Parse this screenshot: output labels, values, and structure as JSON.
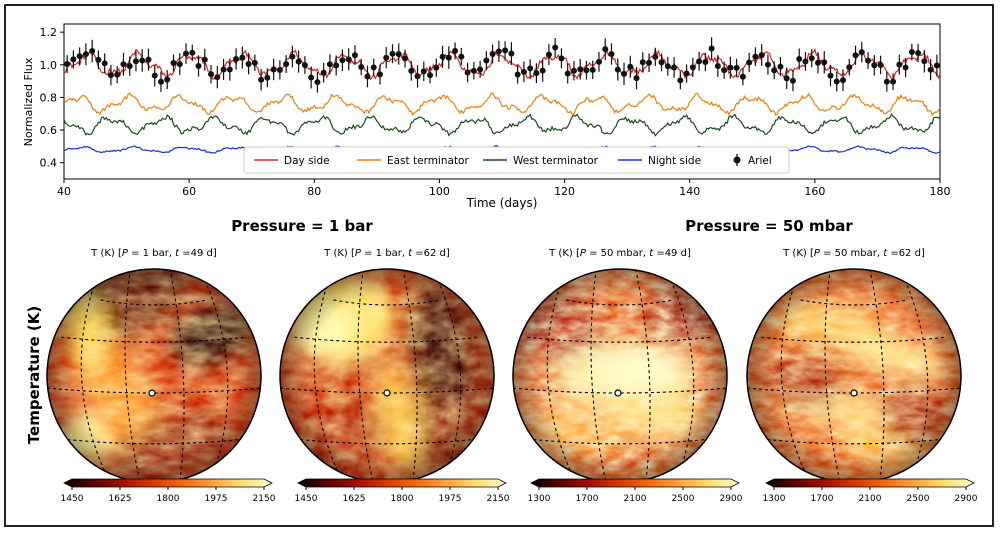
{
  "chart_data": [
    {
      "type": "line",
      "xlabel": "Time (days)",
      "ylabel": "Normalized Flux",
      "xlim": [
        40,
        180
      ],
      "ylim": [
        0.3,
        1.25
      ],
      "x_ticks": [
        "40",
        "60",
        "80",
        "100",
        "120",
        "140",
        "160",
        "180"
      ],
      "y_ticks": [
        "0.4",
        "0.6",
        "0.8",
        "1.0",
        "1.2"
      ],
      "legend_position": "bottom-center",
      "grid": false,
      "series": [
        {
          "name": "Day side",
          "color": "#d62728",
          "mean": 1.0,
          "amplitude": 0.07,
          "period_days": 8.3
        },
        {
          "name": "East terminator",
          "color": "#ee7f0e",
          "mean": 0.76,
          "amplitude": 0.05,
          "period_days": 8.3
        },
        {
          "name": "West terminator",
          "color": "#1f4a1f",
          "mean": 0.63,
          "amplitude": 0.05,
          "period_days": 8.3
        },
        {
          "name": "Night side",
          "color": "#1f2fd6",
          "mean": 0.48,
          "amplitude": 0.018,
          "period_days": 8.3
        },
        {
          "name": "Ariel",
          "color": "#111111",
          "marker": "errorbar",
          "error": 0.05,
          "cadence_days": 1.0
        }
      ]
    },
    {
      "type": "heatmap",
      "panel_group": "Pressure =  1 bar",
      "title_prefix": "T (K) [",
      "title_p": "P",
      "title_mid": " = 1 bar, ",
      "title_t": "t",
      "title_suffix": " =49 d]",
      "colorbar_ticks": [
        "1450",
        "1625",
        "1800",
        "1975",
        "2150"
      ],
      "colorbar_range": [
        1450,
        2150
      ]
    },
    {
      "type": "heatmap",
      "panel_group": "Pressure =  1 bar",
      "title_prefix": "T (K) [",
      "title_p": "P",
      "title_mid": " = 1 bar, ",
      "title_t": "t",
      "title_suffix": " =62 d]",
      "colorbar_ticks": [
        "1450",
        "1625",
        "1800",
        "1975",
        "2150"
      ],
      "colorbar_range": [
        1450,
        2150
      ]
    },
    {
      "type": "heatmap",
      "panel_group": "Pressure =  50 mbar",
      "title_prefix": "T (K) [",
      "title_p": "P",
      "title_mid": " = 50 mbar, ",
      "title_t": "t",
      "title_suffix": " =49 d]",
      "colorbar_ticks": [
        "1300",
        "1700",
        "2100",
        "2500",
        "2900"
      ],
      "colorbar_range": [
        1300,
        2900
      ]
    },
    {
      "type": "heatmap",
      "panel_group": "Pressure =  50 mbar",
      "title_prefix": "T (K) [",
      "title_p": "P",
      "title_mid": " = 50 mbar, ",
      "title_t": "t",
      "title_suffix": " =62 d]",
      "colorbar_ticks": [
        "1300",
        "1700",
        "2100",
        "2500",
        "2900"
      ],
      "colorbar_range": [
        1300,
        2900
      ]
    }
  ],
  "labels": {
    "pressure_1bar": "Pressure =  1 bar",
    "pressure_50mbar": "Pressure =  50 mbar",
    "row_label": "Temperature (K)"
  },
  "colormap": [
    "#000000",
    "#5a0000",
    "#a01000",
    "#d83a00",
    "#f06a10",
    "#ffa040",
    "#ffe070",
    "#ffffd0"
  ]
}
